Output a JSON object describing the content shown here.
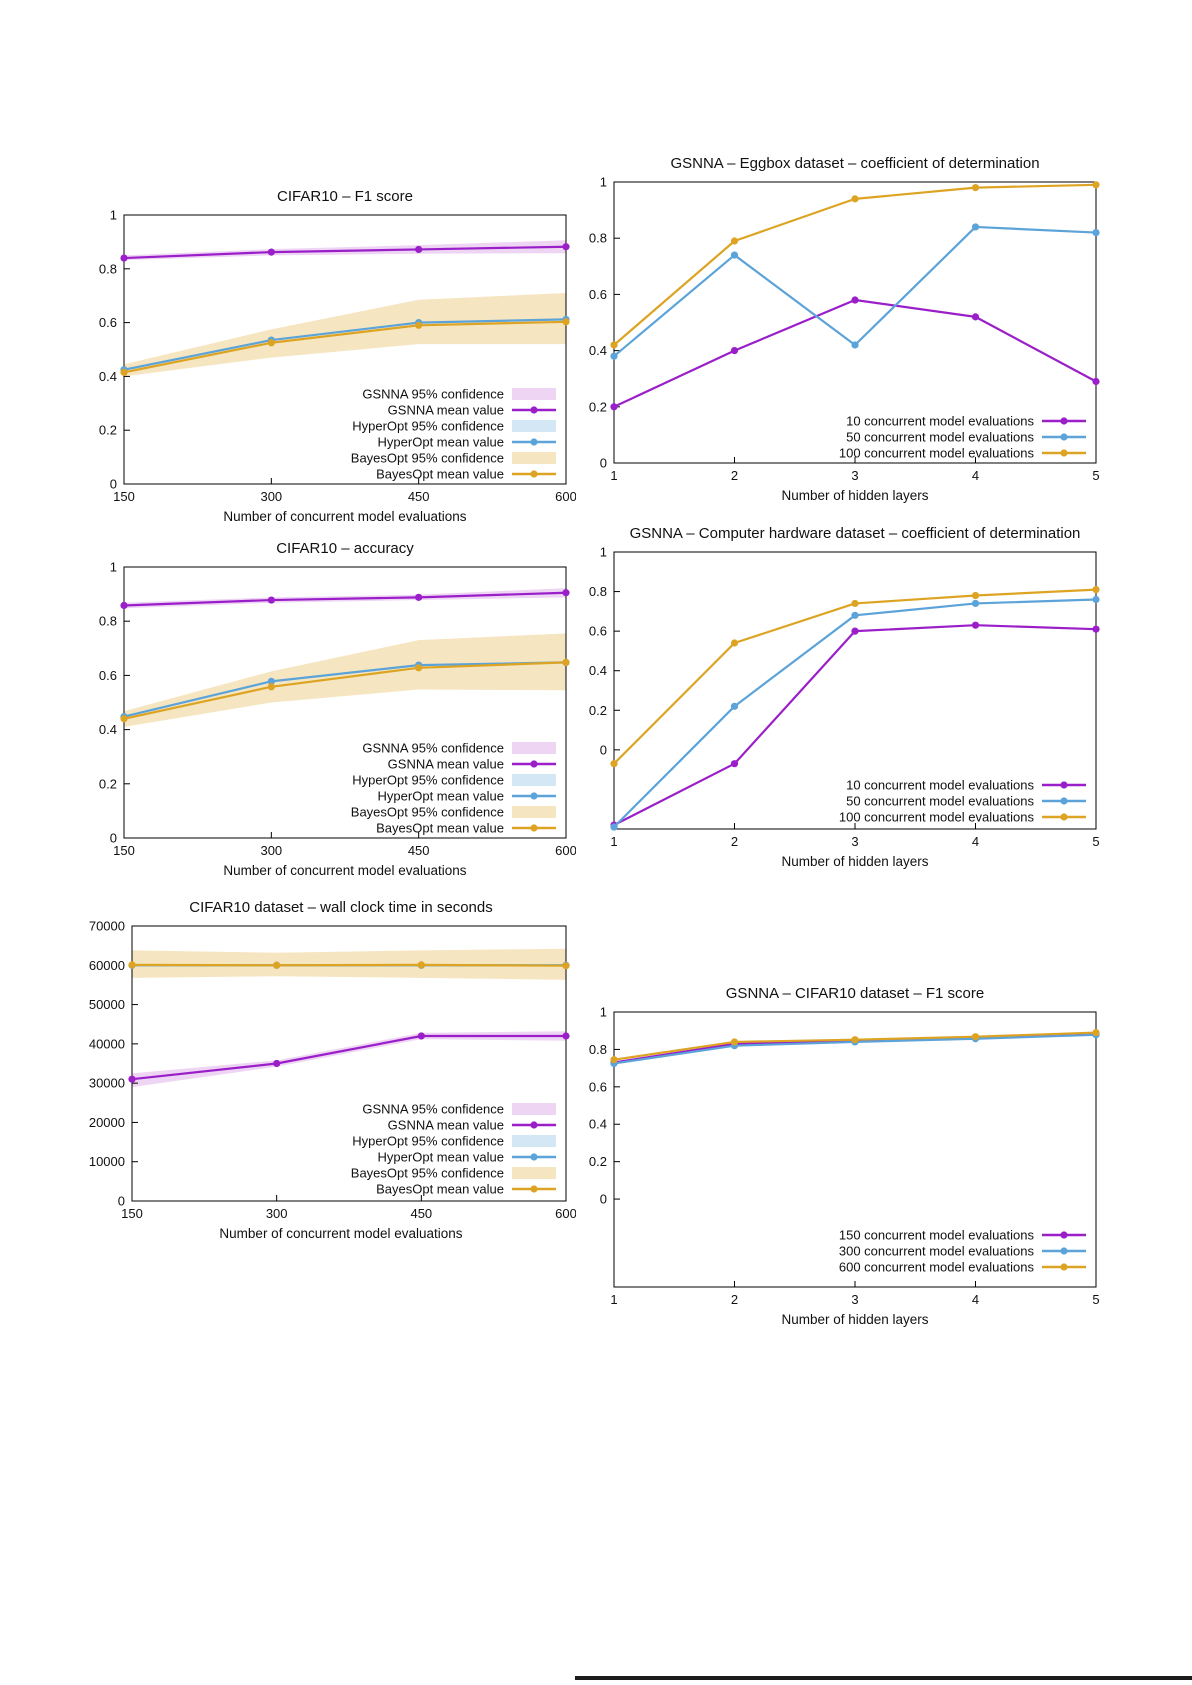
{
  "chart_data": [
    {
      "type": "line",
      "title": "CIFAR10 – F1 score",
      "xlabel": "Number of concurrent model evaluations",
      "ylabel": "",
      "x": [
        150,
        300,
        450,
        600
      ],
      "xtick_labels": [
        "150",
        "300",
        "450",
        "600"
      ],
      "xlim": [
        150,
        600
      ],
      "ylim": [
        0,
        1
      ],
      "yticks": [
        0,
        0.2,
        0.4,
        0.6,
        0.8,
        1
      ],
      "ytick_labels": [
        "0",
        "0.2",
        "0.4",
        "0.6",
        "0.8",
        "1"
      ],
      "grid": false,
      "legend_position": "inside-bottom-right",
      "series": [
        {
          "name": "GSNNA mean value",
          "color": "#9a1fc9",
          "values": [
            0.84,
            0.862,
            0.872,
            0.882
          ],
          "band": {
            "name": "GSNNA 95% confidence",
            "color": "#eed5f4",
            "low": [
              0.832,
              0.85,
              0.856,
              0.858
            ],
            "high": [
              0.85,
              0.873,
              0.888,
              0.906
            ]
          }
        },
        {
          "name": "HyperOpt mean value",
          "color": "#5ba3d9",
          "values": [
            0.425,
            0.535,
            0.6,
            0.612
          ],
          "band": {
            "name": "HyperOpt 95% confidence",
            "color": "#d4e7f4",
            "low": [
              0.41,
              0.515,
              0.575,
              0.59
            ],
            "high": [
              0.445,
              0.55,
              0.625,
              0.635
            ]
          }
        },
        {
          "name": "BayesOpt mean value",
          "color": "#dda423",
          "values": [
            0.415,
            0.525,
            0.59,
            0.603
          ],
          "band": {
            "name": "BayesOpt 95% confidence",
            "color": "#f6e5c1",
            "low": [
              0.4,
              0.47,
              0.52,
              0.52
            ],
            "high": [
              0.445,
              0.575,
              0.685,
              0.71
            ]
          }
        }
      ],
      "legend": {
        "bottom_offset": 10,
        "entries": [
          {
            "label": "GSNNA 95% confidence",
            "type": "band",
            "color": "#eed5f4"
          },
          {
            "label": "GSNNA mean value",
            "type": "line",
            "color": "#9a1fc9"
          },
          {
            "label": "HyperOpt 95% confidence",
            "type": "band",
            "color": "#d4e7f4"
          },
          {
            "label": "HyperOpt mean value",
            "type": "line",
            "color": "#5ba3d9"
          },
          {
            "label": "BayesOpt 95% confidence",
            "type": "band",
            "color": "#f6e5c1"
          },
          {
            "label": "BayesOpt mean value",
            "type": "line",
            "color": "#dda423"
          }
        ]
      }
    },
    {
      "type": "line",
      "title": "GSNNA – Eggbox dataset – coefficient of determination",
      "xlabel": "Number of hidden layers",
      "ylabel": "",
      "x": [
        1,
        2,
        3,
        4,
        5
      ],
      "xtick_labels": [
        "1",
        "2",
        "3",
        "4",
        "5"
      ],
      "xlim": [
        1,
        5
      ],
      "ylim": [
        0,
        1
      ],
      "yticks": [
        0,
        0.2,
        0.4,
        0.6,
        0.8,
        1
      ],
      "ytick_labels": [
        "0",
        "0.2",
        "0.4",
        "0.6",
        "0.8",
        "1"
      ],
      "grid": false,
      "legend_position": "inside-bottom-right",
      "series": [
        {
          "name": "10 concurrent model evaluations",
          "color": "#9a1fc9",
          "values": [
            0.2,
            0.4,
            0.58,
            0.52,
            0.29
          ]
        },
        {
          "name": "50 concurrent model evaluations",
          "color": "#5ba3d9",
          "values": [
            0.38,
            0.74,
            0.42,
            0.84,
            0.82
          ]
        },
        {
          "name": "100 concurrent model evaluations",
          "color": "#dda423",
          "values": [
            0.42,
            0.79,
            0.94,
            0.98,
            0.99
          ]
        }
      ],
      "legend": {
        "bottom_offset": 10,
        "entries": [
          {
            "label": "10 concurrent model evaluations",
            "type": "line",
            "color": "#9a1fc9"
          },
          {
            "label": "50 concurrent model evaluations",
            "type": "line",
            "color": "#5ba3d9"
          },
          {
            "label": "100 concurrent model evaluations",
            "type": "line",
            "color": "#dda423"
          }
        ]
      }
    },
    {
      "type": "line",
      "title": "CIFAR10 – accuracy",
      "xlabel": "Number of concurrent model evaluations",
      "ylabel": "",
      "x": [
        150,
        300,
        450,
        600
      ],
      "xtick_labels": [
        "150",
        "300",
        "450",
        "600"
      ],
      "xlim": [
        150,
        600
      ],
      "ylim": [
        0,
        1
      ],
      "yticks": [
        0,
        0.2,
        0.4,
        0.6,
        0.8,
        1
      ],
      "ytick_labels": [
        "0",
        "0.2",
        "0.4",
        "0.6",
        "0.8",
        "1"
      ],
      "grid": false,
      "legend_position": "inside-bottom-right",
      "series": [
        {
          "name": "GSNNA mean value",
          "color": "#9a1fc9",
          "values": [
            0.858,
            0.878,
            0.888,
            0.905
          ],
          "band": {
            "name": "GSNNA 95% confidence",
            "color": "#eed5f4",
            "low": [
              0.848,
              0.868,
              0.878,
              0.888
            ],
            "high": [
              0.868,
              0.888,
              0.898,
              0.922
            ]
          }
        },
        {
          "name": "HyperOpt mean value",
          "color": "#5ba3d9",
          "values": [
            0.448,
            0.578,
            0.638,
            0.648
          ],
          "band": {
            "name": "HyperOpt 95% confidence",
            "color": "#d4e7f4",
            "low": [
              0.43,
              0.555,
              0.61,
              0.62
            ],
            "high": [
              0.465,
              0.6,
              0.665,
              0.68
            ]
          }
        },
        {
          "name": "BayesOpt mean value",
          "color": "#dda423",
          "values": [
            0.44,
            0.558,
            0.628,
            0.648
          ],
          "band": {
            "name": "BayesOpt 95% confidence",
            "color": "#f6e5c1",
            "low": [
              0.41,
              0.5,
              0.548,
              0.545
            ],
            "high": [
              0.468,
              0.615,
              0.73,
              0.755
            ]
          }
        }
      ],
      "legend": {
        "bottom_offset": 10,
        "entries": [
          {
            "label": "GSNNA 95% confidence",
            "type": "band",
            "color": "#eed5f4"
          },
          {
            "label": "GSNNA mean value",
            "type": "line",
            "color": "#9a1fc9"
          },
          {
            "label": "HyperOpt 95% confidence",
            "type": "band",
            "color": "#d4e7f4"
          },
          {
            "label": "HyperOpt mean value",
            "type": "line",
            "color": "#5ba3d9"
          },
          {
            "label": "BayesOpt 95% confidence",
            "type": "band",
            "color": "#f6e5c1"
          },
          {
            "label": "BayesOpt mean value",
            "type": "line",
            "color": "#dda423"
          }
        ]
      }
    },
    {
      "type": "line",
      "title": "GSNNA – Computer hardware dataset – coefficient of determination",
      "xlabel": "Number of hidden layers",
      "ylabel": "",
      "x": [
        1,
        2,
        3,
        4,
        5
      ],
      "xtick_labels": [
        "1",
        "2",
        "3",
        "4",
        "5"
      ],
      "xlim": [
        1,
        5
      ],
      "ylim": [
        -0.4,
        1
      ],
      "yticks": [
        0,
        0.2,
        0.4,
        0.6,
        0.8,
        1
      ],
      "ytick_labels": [
        "0",
        "0.2",
        "0.4",
        "0.6",
        "0.8",
        "1"
      ],
      "grid": false,
      "legend_position": "inside-bottom-right",
      "series": [
        {
          "name": "10 concurrent model evaluations",
          "color": "#9a1fc9",
          "values": [
            -0.38,
            -0.07,
            0.6,
            0.63,
            0.61
          ]
        },
        {
          "name": "50 concurrent model evaluations",
          "color": "#5ba3d9",
          "values": [
            -0.39,
            0.22,
            0.68,
            0.74,
            0.76
          ]
        },
        {
          "name": "100 concurrent model evaluations",
          "color": "#dda423",
          "values": [
            -0.07,
            0.54,
            0.74,
            0.78,
            0.81
          ]
        }
      ],
      "legend": {
        "bottom_offset": 12,
        "entries": [
          {
            "label": "10 concurrent model evaluations",
            "type": "line",
            "color": "#9a1fc9"
          },
          {
            "label": "50 concurrent model evaluations",
            "type": "line",
            "color": "#5ba3d9"
          },
          {
            "label": "100 concurrent model evaluations",
            "type": "line",
            "color": "#dda423"
          }
        ]
      }
    },
    {
      "type": "line",
      "title": "CIFAR10 dataset – wall clock time in seconds",
      "xlabel": "Number of concurrent model evaluations",
      "ylabel": "",
      "x": [
        150,
        300,
        450,
        600
      ],
      "xtick_labels": [
        "150",
        "300",
        "450",
        "600"
      ],
      "xlim": [
        150,
        600
      ],
      "ylim": [
        0,
        70000
      ],
      "yticks": [
        0,
        10000,
        20000,
        30000,
        40000,
        50000,
        60000,
        70000
      ],
      "ytick_labels": [
        "0",
        "10000",
        "20000",
        "30000",
        "40000",
        "50000",
        "60000",
        "70000"
      ],
      "grid": false,
      "legend_position": "inside-bottom-right",
      "series": [
        {
          "name": "GSNNA mean value",
          "color": "#9a1fc9",
          "values": [
            31000,
            35000,
            42000,
            42000
          ],
          "band": {
            "name": "GSNNA 95% confidence",
            "color": "#eed5f4",
            "low": [
              29000,
              34200,
              41200,
              40800
            ],
            "high": [
              32500,
              35800,
              42800,
              43200
            ]
          }
        },
        {
          "name": "HyperOpt mean value",
          "color": "#5ba3d9",
          "values": [
            60000,
            60000,
            60000,
            60000
          ],
          "band": {
            "name": "HyperOpt 95% confidence",
            "color": "#d4e7f4",
            "low": [
              58200,
              58400,
              58300,
              58000
            ],
            "high": [
              61800,
              61600,
              61700,
              62000
            ]
          }
        },
        {
          "name": "BayesOpt mean value",
          "color": "#dda423",
          "values": [
            60100,
            60000,
            60100,
            59900
          ],
          "band": {
            "name": "BayesOpt 95% confidence",
            "color": "#f6e5c1",
            "low": [
              56800,
              57200,
              56800,
              56300
            ],
            "high": [
              63800,
              63200,
              63800,
              64200
            ]
          }
        }
      ],
      "legend": {
        "bottom_offset": 12,
        "entries": [
          {
            "label": "GSNNA 95% confidence",
            "type": "band",
            "color": "#eed5f4"
          },
          {
            "label": "GSNNA mean value",
            "type": "line",
            "color": "#9a1fc9"
          },
          {
            "label": "HyperOpt 95% confidence",
            "type": "band",
            "color": "#d4e7f4"
          },
          {
            "label": "HyperOpt mean value",
            "type": "line",
            "color": "#5ba3d9"
          },
          {
            "label": "BayesOpt 95% confidence",
            "type": "band",
            "color": "#f6e5c1"
          },
          {
            "label": "BayesOpt mean value",
            "type": "line",
            "color": "#dda423"
          }
        ]
      }
    },
    {
      "type": "line",
      "title": "GSNNA – CIFAR10 dataset – F1 score",
      "xlabel": "Number of hidden layers",
      "ylabel": "",
      "x": [
        1,
        2,
        3,
        4,
        5
      ],
      "xtick_labels": [
        "1",
        "2",
        "3",
        "4",
        "5"
      ],
      "xlim": [
        1,
        5
      ],
      "ylim": [
        -0.47,
        1
      ],
      "yticks": [
        0,
        0.2,
        0.4,
        0.6,
        0.8,
        1
      ],
      "ytick_labels": [
        "0",
        "0.2",
        "0.4",
        "0.6",
        "0.8",
        "1"
      ],
      "grid": false,
      "legend_position": "inside-bottom-right",
      "series": [
        {
          "name": "150 concurrent model evaluations",
          "color": "#9a1fc9",
          "values": [
            0.73,
            0.83,
            0.845,
            0.86,
            0.88
          ]
        },
        {
          "name": "300 concurrent model evaluations",
          "color": "#5ba3d9",
          "values": [
            0.725,
            0.82,
            0.84,
            0.857,
            0.878
          ]
        },
        {
          "name": "600 concurrent model evaluations",
          "color": "#dda423",
          "values": [
            0.745,
            0.84,
            0.852,
            0.868,
            0.89
          ]
        }
      ],
      "legend": {
        "bottom_offset": 20,
        "entries": [
          {
            "label": "150 concurrent model evaluations",
            "type": "line",
            "color": "#9a1fc9"
          },
          {
            "label": "300 concurrent model evaluations",
            "type": "line",
            "color": "#5ba3d9"
          },
          {
            "label": "600 concurrent model evaluations",
            "type": "line",
            "color": "#dda423"
          }
        ]
      }
    }
  ]
}
